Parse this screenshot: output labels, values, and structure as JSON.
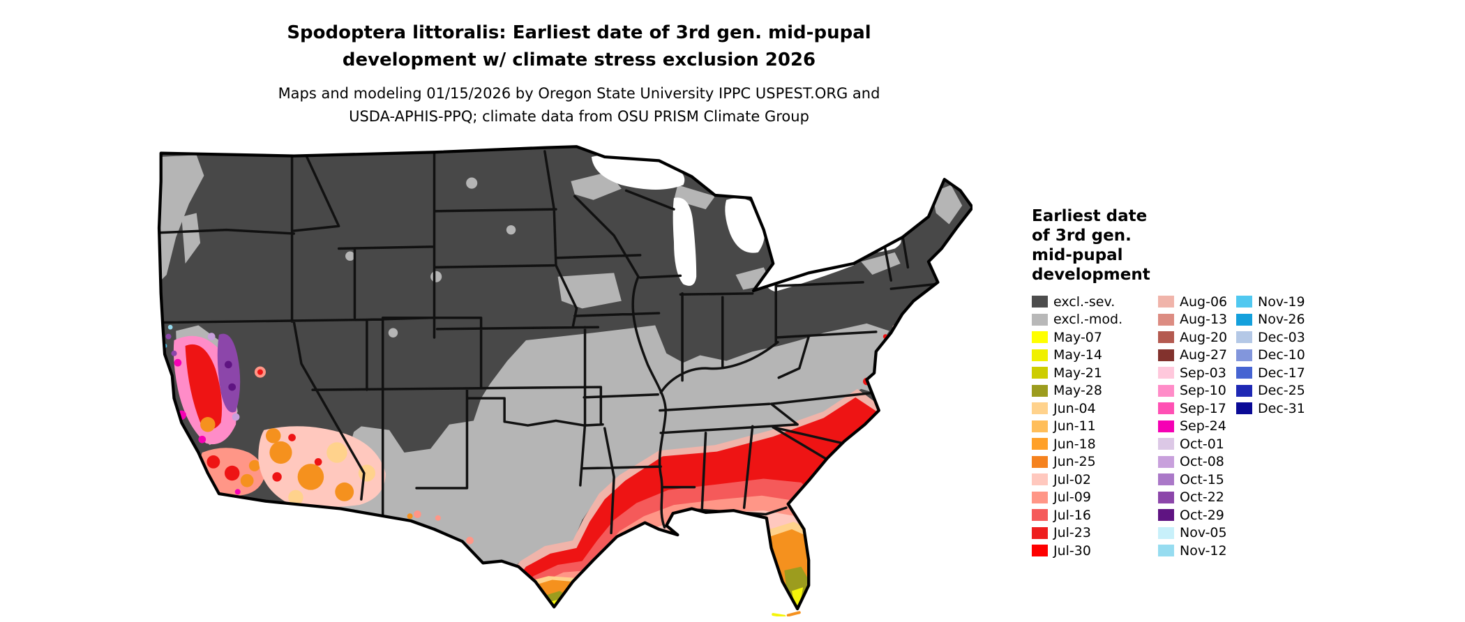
{
  "title": {
    "line1": "Spodoptera littoralis: Earliest date of 3rd gen. mid-pupal",
    "line2": "development w/ climate stress exclusion 2026"
  },
  "subtitle": {
    "line1": "Maps and modeling 01/15/2026 by Oregon State University IPPC USPEST.ORG and",
    "line2": "USDA-APHIS-PPQ; climate data from OSU PRISM Climate Group"
  },
  "legend": {
    "title_lines": [
      "Earliest date",
      "of 3rd gen.",
      "mid-pupal",
      "development"
    ],
    "columns": [
      {
        "items": [
          {
            "label": "excl.-sev.",
            "color": "#4d4d4d"
          },
          {
            "label": "excl.-mod.",
            "color": "#b8b8b8"
          },
          {
            "label": "May-07",
            "color": "#ffff00"
          },
          {
            "label": "May-14",
            "color": "#f0f000"
          },
          {
            "label": "May-21",
            "color": "#cdcd00"
          },
          {
            "label": "May-28",
            "color": "#9c9c1e"
          },
          {
            "label": "Jun-04",
            "color": "#ffd28c"
          },
          {
            "label": "Jun-11",
            "color": "#ffbe5a"
          },
          {
            "label": "Jun-18",
            "color": "#ffa028"
          },
          {
            "label": "Jun-25",
            "color": "#f5821e"
          },
          {
            "label": "Jul-02",
            "color": "#ffc8be"
          },
          {
            "label": "Jul-09",
            "color": "#ff9687"
          },
          {
            "label": "Jul-16",
            "color": "#f55a5a"
          },
          {
            "label": "Jul-23",
            "color": "#ee1e1e"
          },
          {
            "label": "Jul-30",
            "color": "#fe0000"
          }
        ]
      },
      {
        "items": [
          {
            "label": "Aug-06",
            "color": "#f0b4aa"
          },
          {
            "label": "Aug-13",
            "color": "#dc8c82"
          },
          {
            "label": "Aug-20",
            "color": "#b45a50"
          },
          {
            "label": "Aug-27",
            "color": "#82322d"
          },
          {
            "label": "Sep-03",
            "color": "#ffc8dc"
          },
          {
            "label": "Sep-10",
            "color": "#ff8cc8"
          },
          {
            "label": "Sep-17",
            "color": "#ff50b4"
          },
          {
            "label": "Sep-24",
            "color": "#f500b4"
          },
          {
            "label": "Oct-01",
            "color": "#dcc8e6"
          },
          {
            "label": "Oct-08",
            "color": "#c8a0dc"
          },
          {
            "label": "Oct-15",
            "color": "#aa78c8"
          },
          {
            "label": "Oct-22",
            "color": "#8c46aa"
          },
          {
            "label": "Oct-29",
            "color": "#5f1482"
          },
          {
            "label": "Nov-05",
            "color": "#c8f0fa"
          },
          {
            "label": "Nov-12",
            "color": "#96dcf0"
          }
        ]
      },
      {
        "items": [
          {
            "label": "Nov-19",
            "color": "#50c8f0"
          },
          {
            "label": "Nov-26",
            "color": "#14a0dc"
          },
          {
            "label": "Dec-03",
            "color": "#b4c8e6"
          },
          {
            "label": "Dec-10",
            "color": "#8296dc"
          },
          {
            "label": "Dec-17",
            "color": "#4664d2"
          },
          {
            "label": "Dec-25",
            "color": "#1e28b4"
          },
          {
            "label": "Dec-31",
            "color": "#0a0a96"
          }
        ]
      }
    ]
  },
  "map": {
    "excluded_severe_color": "#484848",
    "excluded_moderate_color": "#b5b5b5"
  }
}
